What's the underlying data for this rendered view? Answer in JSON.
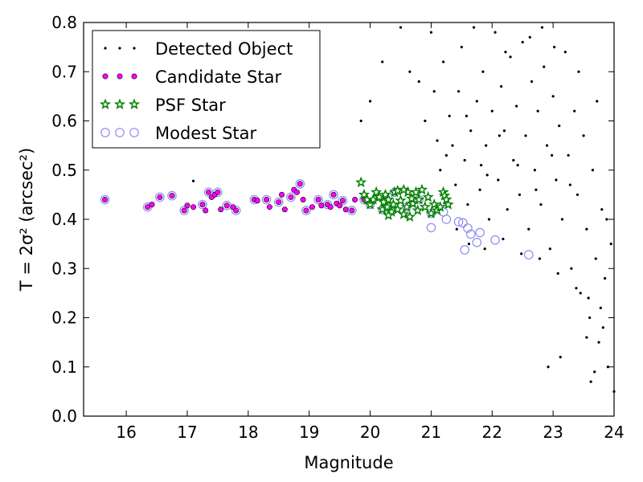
{
  "chart_data": {
    "type": "scatter",
    "xlabel": "Magnitude",
    "ylabel": "T = 2σ² (arcsec²)",
    "xlim": [
      15.3,
      24.0
    ],
    "ylim": [
      0.0,
      0.8
    ],
    "xticks": [
      "16",
      "17",
      "18",
      "19",
      "20",
      "21",
      "22",
      "23",
      "24"
    ],
    "yticks": [
      "0.0",
      "0.1",
      "0.2",
      "0.3",
      "0.4",
      "0.5",
      "0.6",
      "0.7",
      "0.8"
    ],
    "legend_position": "top-left",
    "series": [
      {
        "name": "Detected Object",
        "marker": "dot",
        "color": "#000000",
        "points": [
          [
            17.1,
            0.478
          ],
          [
            19.85,
            0.6
          ],
          [
            20.0,
            0.64
          ],
          [
            20.2,
            0.72
          ],
          [
            20.5,
            0.79
          ],
          [
            20.65,
            0.7
          ],
          [
            20.8,
            0.68
          ],
          [
            20.9,
            0.6
          ],
          [
            21.0,
            0.78
          ],
          [
            21.05,
            0.66
          ],
          [
            21.1,
            0.56
          ],
          [
            21.15,
            0.5
          ],
          [
            21.2,
            0.72
          ],
          [
            21.3,
            0.61
          ],
          [
            21.35,
            0.55
          ],
          [
            21.4,
            0.47
          ],
          [
            21.45,
            0.66
          ],
          [
            21.5,
            0.75
          ],
          [
            21.55,
            0.52
          ],
          [
            21.6,
            0.43
          ],
          [
            21.65,
            0.58
          ],
          [
            21.7,
            0.79
          ],
          [
            21.75,
            0.64
          ],
          [
            21.8,
            0.46
          ],
          [
            21.85,
            0.7
          ],
          [
            21.9,
            0.55
          ],
          [
            21.95,
            0.4
          ],
          [
            22.0,
            0.62
          ],
          [
            22.05,
            0.78
          ],
          [
            22.1,
            0.48
          ],
          [
            22.15,
            0.67
          ],
          [
            22.2,
            0.58
          ],
          [
            22.25,
            0.42
          ],
          [
            22.3,
            0.73
          ],
          [
            22.35,
            0.52
          ],
          [
            22.4,
            0.63
          ],
          [
            22.45,
            0.45
          ],
          [
            22.5,
            0.76
          ],
          [
            22.55,
            0.57
          ],
          [
            22.6,
            0.38
          ],
          [
            22.65,
            0.68
          ],
          [
            22.7,
            0.5
          ],
          [
            22.75,
            0.62
          ],
          [
            22.8,
            0.43
          ],
          [
            22.85,
            0.71
          ],
          [
            22.9,
            0.55
          ],
          [
            22.95,
            0.34
          ],
          [
            23.0,
            0.65
          ],
          [
            23.05,
            0.48
          ],
          [
            23.1,
            0.59
          ],
          [
            23.15,
            0.4
          ],
          [
            23.2,
            0.74
          ],
          [
            23.25,
            0.53
          ],
          [
            23.3,
            0.3
          ],
          [
            23.35,
            0.62
          ],
          [
            23.4,
            0.45
          ],
          [
            23.45,
            0.25
          ],
          [
            23.5,
            0.57
          ],
          [
            23.55,
            0.38
          ],
          [
            23.6,
            0.2
          ],
          [
            23.65,
            0.5
          ],
          [
            23.7,
            0.32
          ],
          [
            23.75,
            0.15
          ],
          [
            23.8,
            0.42
          ],
          [
            23.85,
            0.28
          ],
          [
            23.9,
            0.1
          ],
          [
            23.95,
            0.35
          ],
          [
            24.0,
            0.05
          ],
          [
            21.25,
            0.53
          ],
          [
            21.58,
            0.61
          ],
          [
            21.92,
            0.49
          ],
          [
            22.12,
            0.57
          ],
          [
            22.42,
            0.51
          ],
          [
            22.72,
            0.46
          ],
          [
            22.98,
            0.53
          ],
          [
            23.28,
            0.47
          ],
          [
            23.12,
            0.12
          ],
          [
            22.92,
            0.1
          ],
          [
            23.62,
            0.07
          ],
          [
            23.55,
            0.16
          ],
          [
            23.78,
            0.22
          ],
          [
            23.88,
            0.4
          ],
          [
            23.68,
            0.09
          ],
          [
            21.82,
            0.51
          ],
          [
            22.22,
            0.74
          ],
          [
            22.62,
            0.77
          ],
          [
            22.82,
            0.79
          ],
          [
            23.02,
            0.75
          ],
          [
            23.42,
            0.7
          ],
          [
            23.72,
            0.64
          ],
          [
            21.42,
            0.38
          ],
          [
            21.62,
            0.35
          ],
          [
            21.88,
            0.34
          ],
          [
            22.18,
            0.36
          ],
          [
            22.48,
            0.33
          ],
          [
            22.78,
            0.32
          ],
          [
            23.08,
            0.29
          ],
          [
            23.38,
            0.26
          ],
          [
            23.58,
            0.24
          ],
          [
            23.82,
            0.18
          ]
        ]
      },
      {
        "name": "Candidate Star",
        "marker": "circle",
        "color": "#ff00ff",
        "points": [
          [
            15.65,
            0.44
          ],
          [
            16.35,
            0.425
          ],
          [
            16.42,
            0.43
          ],
          [
            16.55,
            0.445
          ],
          [
            16.75,
            0.448
          ],
          [
            16.95,
            0.418
          ],
          [
            17.0,
            0.428
          ],
          [
            17.1,
            0.425
          ],
          [
            17.25,
            0.43
          ],
          [
            17.3,
            0.418
          ],
          [
            17.35,
            0.455
          ],
          [
            17.4,
            0.445
          ],
          [
            17.45,
            0.45
          ],
          [
            17.5,
            0.455
          ],
          [
            17.55,
            0.42
          ],
          [
            17.65,
            0.428
          ],
          [
            17.75,
            0.425
          ],
          [
            17.8,
            0.418
          ],
          [
            18.1,
            0.44
          ],
          [
            18.15,
            0.438
          ],
          [
            18.3,
            0.44
          ],
          [
            18.35,
            0.425
          ],
          [
            18.5,
            0.435
          ],
          [
            18.55,
            0.45
          ],
          [
            18.6,
            0.42
          ],
          [
            18.7,
            0.445
          ],
          [
            18.75,
            0.46
          ],
          [
            18.8,
            0.455
          ],
          [
            18.85,
            0.472
          ],
          [
            18.9,
            0.44
          ],
          [
            18.95,
            0.418
          ],
          [
            19.05,
            0.425
          ],
          [
            19.15,
            0.44
          ],
          [
            19.2,
            0.428
          ],
          [
            19.3,
            0.43
          ],
          [
            19.35,
            0.425
          ],
          [
            19.4,
            0.45
          ],
          [
            19.45,
            0.432
          ],
          [
            19.5,
            0.428
          ],
          [
            19.55,
            0.438
          ],
          [
            19.6,
            0.42
          ],
          [
            19.7,
            0.418
          ],
          [
            19.75,
            0.44
          ],
          [
            19.9,
            0.44
          ]
        ]
      },
      {
        "name": "PSF Star",
        "marker": "star",
        "color": "#008000",
        "points": [
          [
            19.85,
            0.475
          ],
          [
            19.9,
            0.45
          ],
          [
            19.95,
            0.44
          ],
          [
            20.0,
            0.43
          ],
          [
            20.05,
            0.44
          ],
          [
            20.1,
            0.455
          ],
          [
            20.15,
            0.445
          ],
          [
            20.2,
            0.42
          ],
          [
            20.22,
            0.435
          ],
          [
            20.25,
            0.45
          ],
          [
            20.28,
            0.425
          ],
          [
            20.3,
            0.44
          ],
          [
            20.35,
            0.415
          ],
          [
            20.38,
            0.43
          ],
          [
            20.4,
            0.455
          ],
          [
            20.45,
            0.42
          ],
          [
            20.5,
            0.438
          ],
          [
            20.55,
            0.41
          ],
          [
            20.6,
            0.425
          ],
          [
            20.62,
            0.455
          ],
          [
            20.65,
            0.405
          ],
          [
            20.7,
            0.432
          ],
          [
            20.75,
            0.455
          ],
          [
            20.78,
            0.418
          ],
          [
            20.8,
            0.44
          ],
          [
            20.85,
            0.46
          ],
          [
            20.9,
            0.425
          ],
          [
            20.95,
            0.445
          ],
          [
            21.0,
            0.412
          ],
          [
            21.05,
            0.43
          ],
          [
            21.1,
            0.418
          ],
          [
            21.15,
            0.425
          ],
          [
            21.2,
            0.455
          ],
          [
            21.22,
            0.448
          ],
          [
            21.25,
            0.44
          ],
          [
            21.28,
            0.43
          ],
          [
            20.45,
            0.458
          ],
          [
            20.55,
            0.46
          ],
          [
            20.3,
            0.408
          ],
          [
            20.68,
            0.442
          ]
        ]
      },
      {
        "name": "Modest Star",
        "marker": "open-circle",
        "color": "#8c8cf0",
        "points": [
          [
            15.65,
            0.44
          ],
          [
            16.35,
            0.425
          ],
          [
            16.55,
            0.445
          ],
          [
            16.75,
            0.448
          ],
          [
            16.95,
            0.418
          ],
          [
            17.25,
            0.43
          ],
          [
            17.35,
            0.455
          ],
          [
            17.5,
            0.455
          ],
          [
            17.65,
            0.428
          ],
          [
            17.8,
            0.418
          ],
          [
            18.1,
            0.44
          ],
          [
            18.3,
            0.44
          ],
          [
            18.5,
            0.435
          ],
          [
            18.7,
            0.445
          ],
          [
            18.85,
            0.472
          ],
          [
            18.95,
            0.418
          ],
          [
            19.15,
            0.44
          ],
          [
            19.3,
            0.43
          ],
          [
            19.4,
            0.45
          ],
          [
            19.55,
            0.438
          ],
          [
            19.7,
            0.418
          ],
          [
            19.9,
            0.44
          ],
          [
            20.0,
            0.43
          ],
          [
            20.2,
            0.42
          ],
          [
            20.4,
            0.455
          ],
          [
            20.6,
            0.425
          ],
          [
            20.8,
            0.44
          ],
          [
            21.0,
            0.412
          ],
          [
            21.0,
            0.383
          ],
          [
            21.2,
            0.415
          ],
          [
            21.25,
            0.4
          ],
          [
            21.45,
            0.395
          ],
          [
            21.52,
            0.393
          ],
          [
            21.55,
            0.338
          ],
          [
            21.6,
            0.382
          ],
          [
            21.65,
            0.37
          ],
          [
            21.75,
            0.353
          ],
          [
            21.8,
            0.373
          ],
          [
            22.05,
            0.358
          ],
          [
            22.6,
            0.328
          ]
        ]
      }
    ]
  }
}
